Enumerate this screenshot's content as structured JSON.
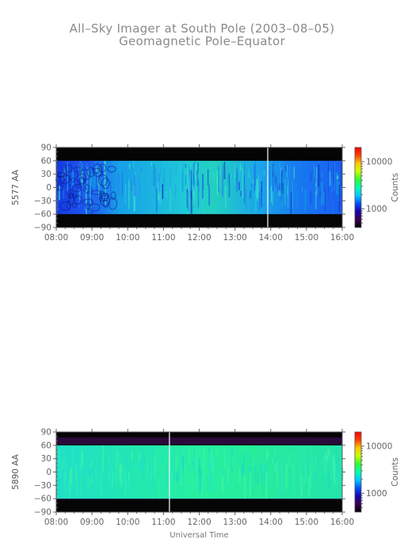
{
  "title": "All–Sky Imager at South Pole (2003–08–05)",
  "subtitle": "Geomagnetic Pole–Equator",
  "chart_data": [
    {
      "type": "heatmap",
      "ylabel": "5577 AA",
      "xlabel": "",
      "x_ticks": [
        "08:00",
        "09:00",
        "10:00",
        "11:00",
        "12:00",
        "13:00",
        "14:00",
        "15:00",
        "16:00"
      ],
      "xlim": [
        "08:00",
        "16:00"
      ],
      "y_ticks": [
        90,
        60,
        30,
        0,
        -30,
        -60,
        -90
      ],
      "ylim": [
        -90,
        90
      ],
      "data_band_lat": [
        -60,
        60
      ],
      "gap_time": "13:55",
      "colorbar": {
        "label": "Counts",
        "ticks": [
          1000,
          10000
        ],
        "scale": "log"
      },
      "dominant_color": "#1f9ad8"
    },
    {
      "type": "heatmap",
      "ylabel": "5890 AA",
      "xlabel": "Universal Time",
      "x_ticks": [
        "08:00",
        "09:00",
        "10:00",
        "11:00",
        "12:00",
        "13:00",
        "14:00",
        "15:00",
        "16:00"
      ],
      "xlim": [
        "08:00",
        "16:00"
      ],
      "y_ticks": [
        90,
        60,
        30,
        0,
        -30,
        -60,
        -90
      ],
      "ylim": [
        -90,
        90
      ],
      "data_band_lat": [
        -60,
        60
      ],
      "gap_time": "11:10",
      "colorbar": {
        "label": "Counts",
        "ticks": [
          1000,
          10000
        ],
        "scale": "log"
      },
      "dominant_color": "#22e6a6"
    }
  ]
}
